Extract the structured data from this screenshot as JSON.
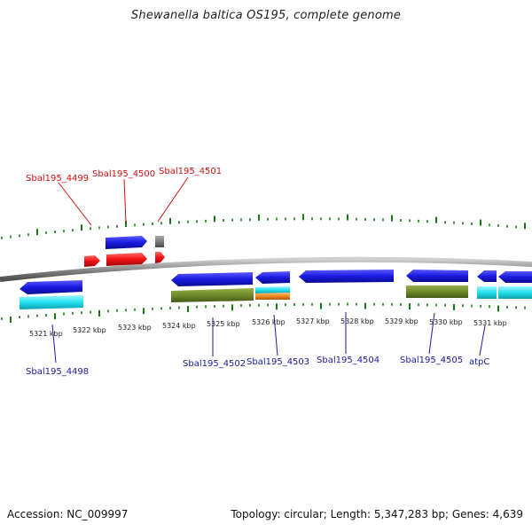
{
  "title": "Shewanella baltica OS195, complete genome",
  "footer": {
    "accession": "Accession: NC_009997",
    "stats": "Topology: circular; Length: 5,347,283 bp; Genes: 4,639"
  },
  "scale_labels": [
    "5321 kbp",
    "5322 kbp",
    "5323 kbp",
    "5324 kbp",
    "5325 kbp",
    "5326 kbp",
    "5327 kbp",
    "5328 kbp",
    "5329 kbp",
    "5330 kbp",
    "5331 kbp"
  ],
  "gene_labels": {
    "g4499": "Sbal195_4499",
    "g4500": "Sbal195_4500",
    "g4501": "Sbal195_4501",
    "g4498": "Sbal195_4498",
    "g4502": "Sbal195_4502",
    "g4503": "Sbal195_4503",
    "g4504": "Sbal195_4504",
    "g4505": "Sbal195_4505",
    "atpC": "atpC"
  },
  "colors": {
    "tick": "#1a7a1a",
    "backbone": "#8a8a8a",
    "forward_label": "#d01010",
    "reverse_label": "#1a1aa0",
    "gene_red": "#ee1111",
    "gene_blue": "#1a1ae0",
    "gene_gray": "#7a7a7a",
    "cog_cyan": "#22e0ee",
    "cog_olive": "#6e8a2a",
    "cog_orange": "#f08a20"
  }
}
